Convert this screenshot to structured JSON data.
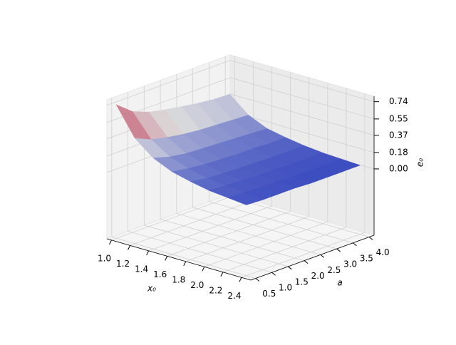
{
  "chart_data": {
    "type": "surface",
    "xlabel": "x₀",
    "ylabel": "a",
    "zlabel": "e₀",
    "x": [
      1.0,
      1.2,
      1.4,
      1.6,
      1.8,
      2.0,
      2.2,
      2.4
    ],
    "y": [
      0.5,
      1.0,
      1.5,
      2.0,
      2.5,
      3.0,
      3.5,
      4.0
    ],
    "z": [
      [
        0.74,
        0.6,
        0.53,
        0.49,
        0.46,
        0.43,
        0.41,
        0.4
      ],
      [
        0.43,
        0.35,
        0.31,
        0.28,
        0.26,
        0.25,
        0.24,
        0.23
      ],
      [
        0.27,
        0.22,
        0.19,
        0.18,
        0.17,
        0.16,
        0.15,
        0.14
      ],
      [
        0.18,
        0.15,
        0.13,
        0.12,
        0.11,
        0.11,
        0.1,
        0.1
      ],
      [
        0.13,
        0.1,
        0.09,
        0.08,
        0.08,
        0.07,
        0.07,
        0.07
      ],
      [
        0.09,
        0.08,
        0.07,
        0.06,
        0.06,
        0.05,
        0.05,
        0.05
      ],
      [
        0.07,
        0.06,
        0.05,
        0.05,
        0.04,
        0.04,
        0.04,
        0.04
      ],
      [
        0.05,
        0.04,
        0.04,
        0.04,
        0.03,
        0.03,
        0.03,
        0.03
      ]
    ],
    "xlim": [
      0.95,
      2.5
    ],
    "ylim": [
      0.35,
      4.15
    ],
    "zlim": [
      -0.73,
      0.8
    ],
    "xticks": [
      {
        "value": 1,
        "label": "1.0"
      },
      1.2,
      1.4,
      1.6,
      1.8,
      {
        "value": 2,
        "label": "2.0"
      },
      2.2,
      2.4
    ],
    "yticks": [
      0.5,
      {
        "value": 1,
        "label": "1.0"
      },
      1.5,
      {
        "value": 2,
        "label": "2.0"
      },
      2.5,
      {
        "value": 3,
        "label": "3.0"
      },
      3.5,
      {
        "value": 4,
        "label": "4.0"
      }
    ],
    "zticks": [
      {
        "value": 0,
        "label": "0.00"
      },
      0.18,
      0.37,
      0.55,
      0.74
    ],
    "colormap": "coolwarm",
    "grid": true
  }
}
